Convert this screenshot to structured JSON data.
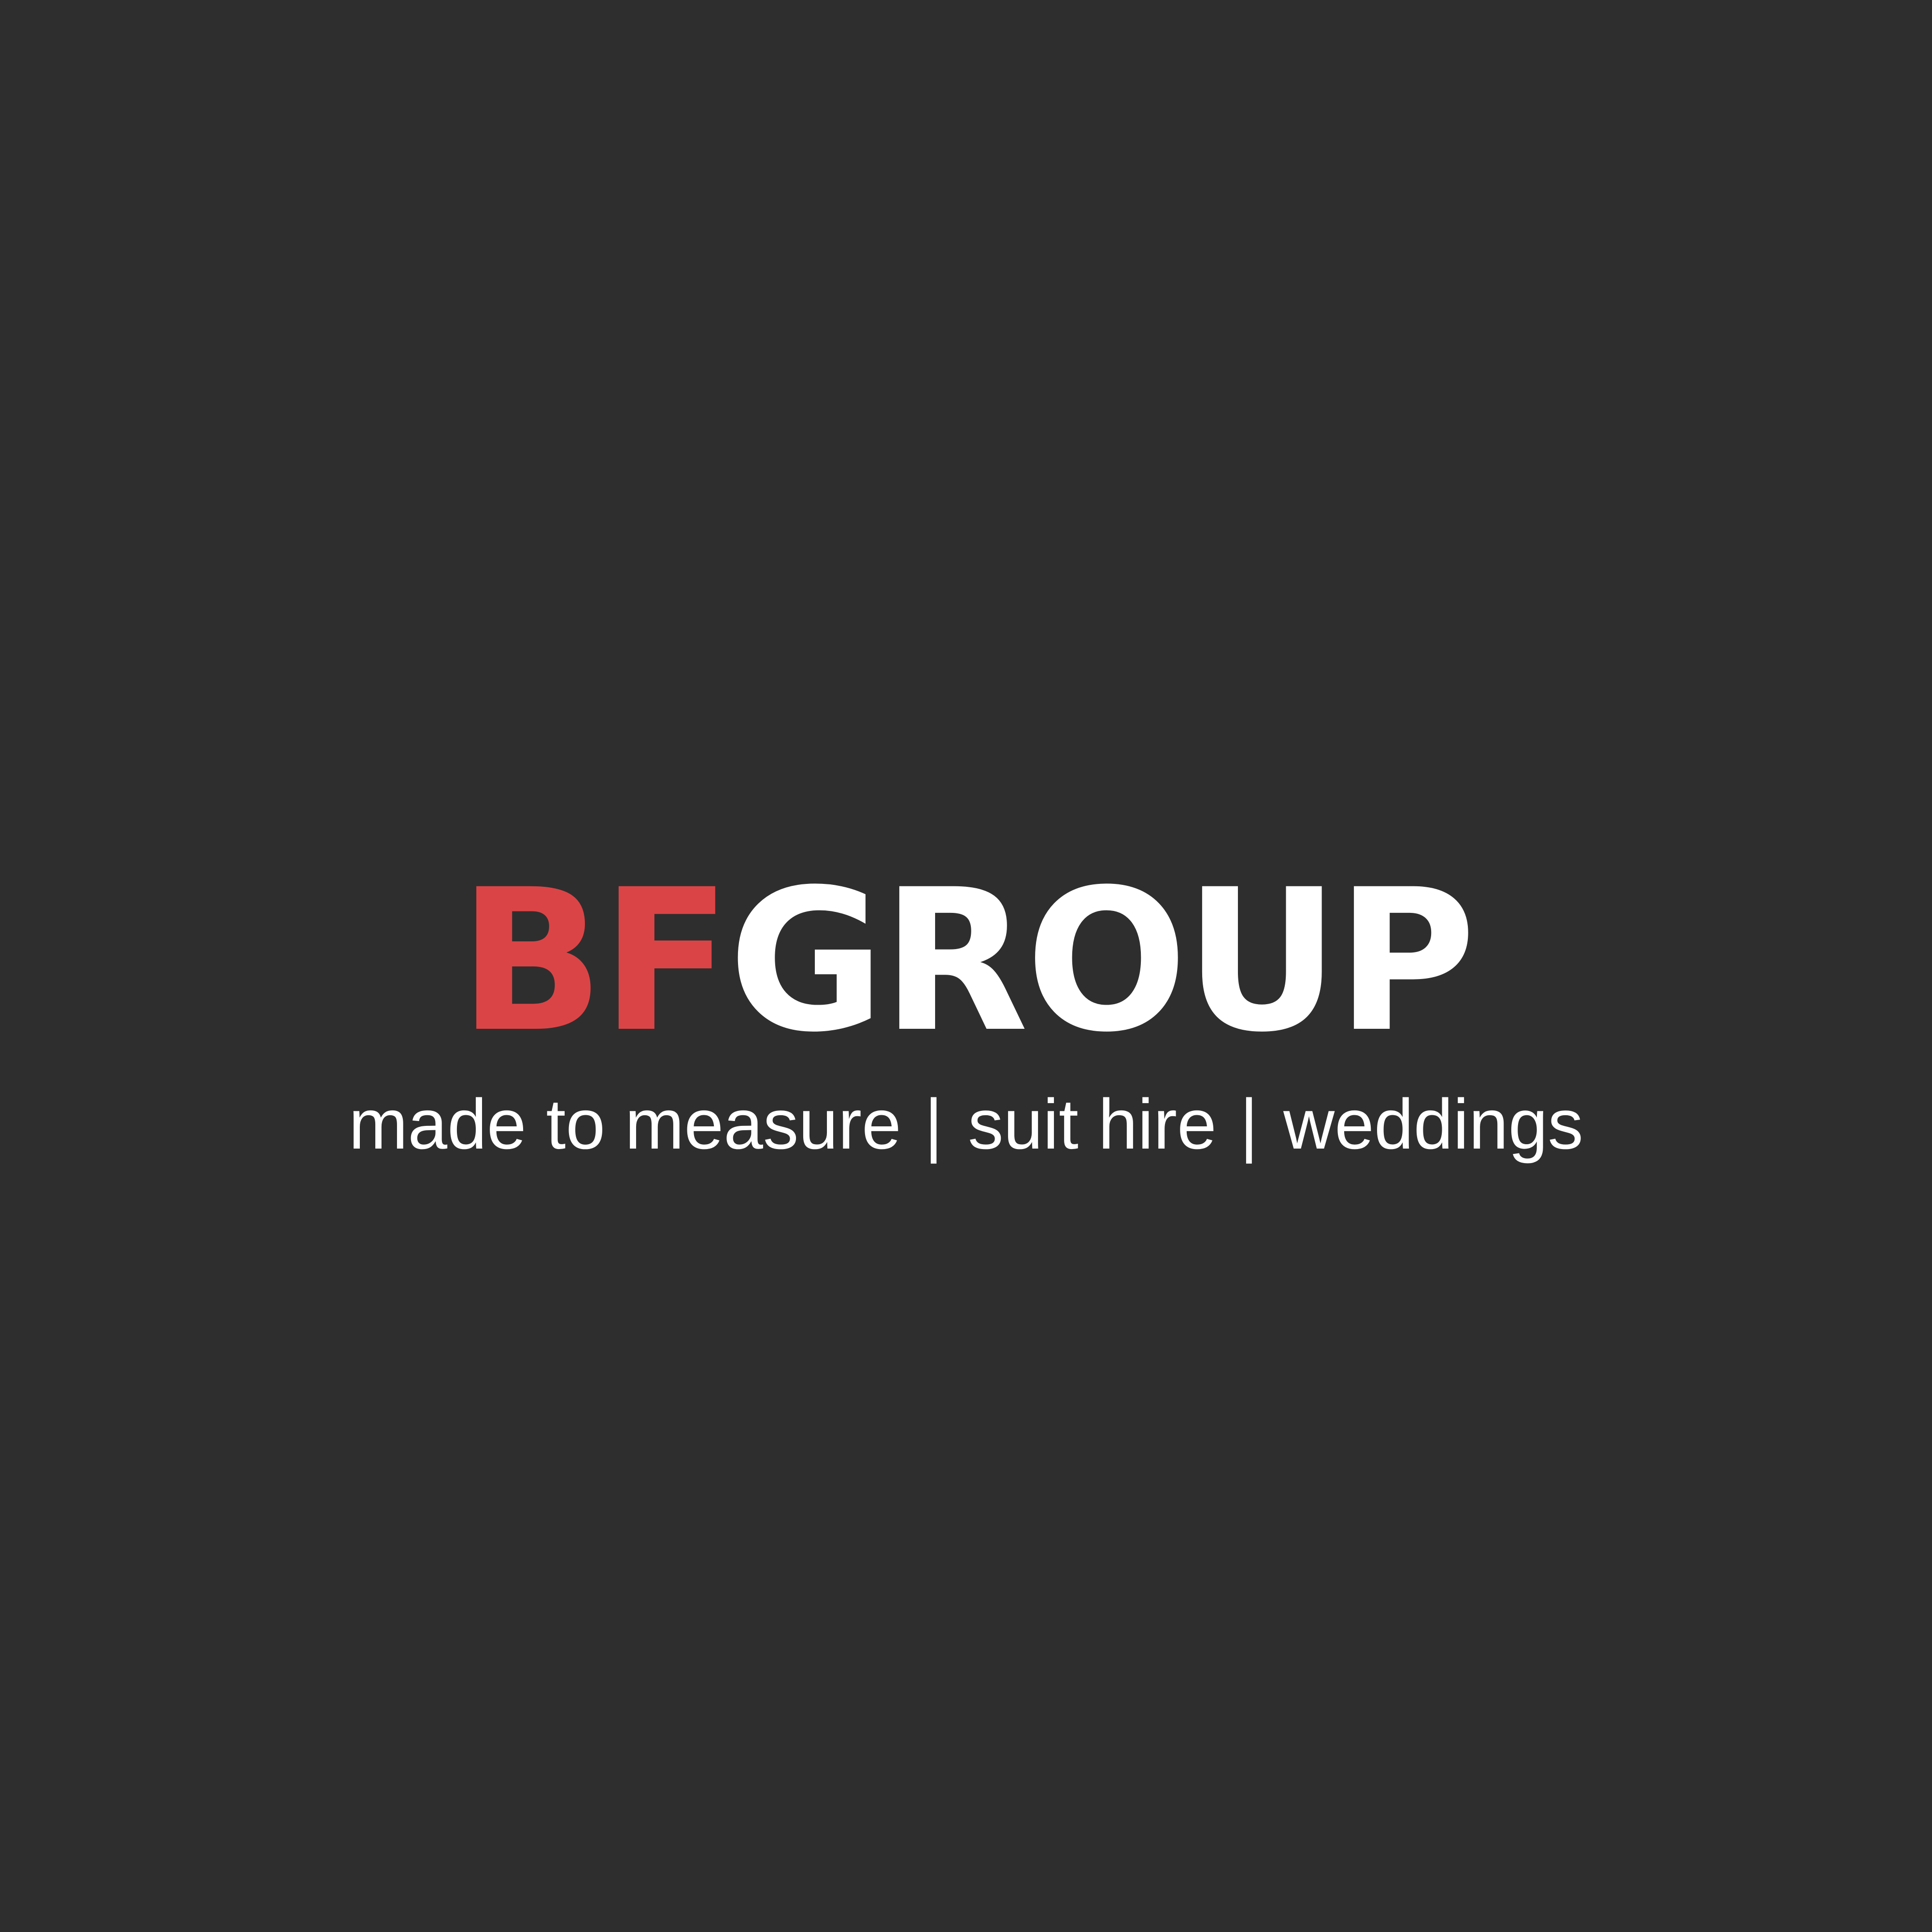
{
  "brand": {
    "name_part_1": "BF",
    "name_part_2": "GROUP",
    "accent_color": "#db4446",
    "primary_text_color": "#ffffff",
    "background_color": "#2e2e2e"
  },
  "tagline": {
    "items": [
      "made to measure",
      "suit hire",
      "weddings"
    ],
    "separator": "|"
  }
}
